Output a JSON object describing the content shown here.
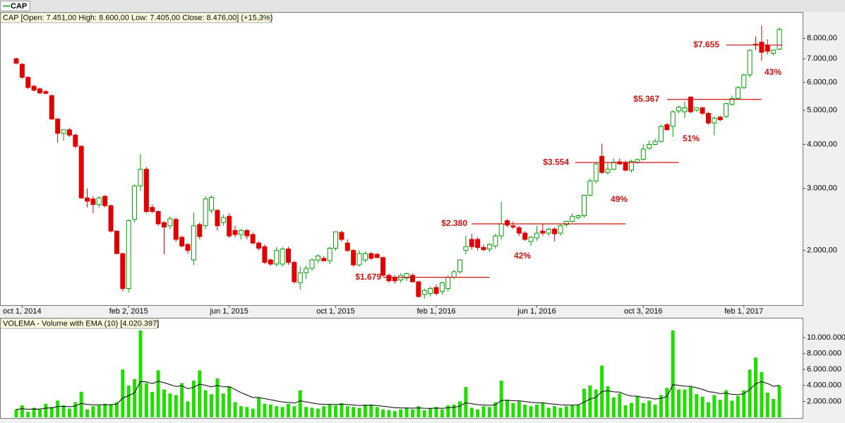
{
  "chart_data": [
    {
      "type": "candlestick",
      "legend": "CAP",
      "info": "CAP [Open: 7.451,00  High: 8.600,00  Low: 7.405,00  Close: 8.476,00] (+15,3%)",
      "categories": [
        null,
        "oct 1, 2014",
        null,
        null,
        null,
        null,
        null,
        null,
        null,
        null,
        null,
        null,
        null,
        null,
        null,
        null,
        null,
        null,
        null,
        "feb 2, 2015",
        null,
        null,
        null,
        null,
        null,
        null,
        null,
        null,
        null,
        null,
        null,
        null,
        null,
        null,
        null,
        null,
        "jun 1, 2015",
        null,
        null,
        null,
        null,
        null,
        null,
        null,
        null,
        null,
        null,
        null,
        null,
        null,
        null,
        null,
        null,
        null,
        "oct 1, 2015",
        null,
        null,
        null,
        null,
        null,
        null,
        null,
        null,
        null,
        null,
        null,
        null,
        null,
        null,
        null,
        null,
        "feb 1, 2016",
        null,
        null,
        null,
        null,
        null,
        null,
        null,
        null,
        null,
        null,
        null,
        null,
        null,
        null,
        null,
        null,
        "jun 1, 2016",
        null,
        null,
        null,
        null,
        null,
        null,
        null,
        null,
        null,
        null,
        null,
        null,
        null,
        null,
        null,
        null,
        null,
        "oct 3, 2016",
        null,
        null,
        null,
        null,
        null,
        null,
        null,
        null,
        null,
        null,
        null,
        null,
        null,
        null,
        null,
        null,
        "feb 1, 2017",
        null,
        null,
        null,
        null,
        null,
        null
      ],
      "open": [
        7000,
        6750,
        6200,
        5850,
        5750,
        5650,
        5500,
        4720,
        4300,
        4400,
        4250,
        3950,
        2820,
        2800,
        2700,
        2850,
        2680,
        2270,
        1960,
        1560,
        2450,
        3050,
        3400,
        2650,
        2580,
        2400,
        2350,
        2450,
        2180,
        2080,
        1880,
        2370,
        2350,
        2600,
        2600,
        2400,
        2500,
        2280,
        2220,
        2280,
        2220,
        2100,
        2050,
        1880,
        1830,
        1830,
        2020,
        1850,
        1620,
        1730,
        1780,
        1880,
        1900,
        1870,
        2030,
        2250,
        2100,
        2000,
        1820,
        1880,
        1960,
        1950,
        1910,
        1700,
        1680,
        1650,
        1670,
        1700,
        1630,
        1500,
        1510,
        1570,
        1530,
        1560,
        1680,
        1740,
        2000,
        2150,
        2150,
        2040,
        2020,
        2060,
        2200,
        2430,
        2350,
        2320,
        2240,
        2120,
        2170,
        2270,
        2240,
        2300,
        2240,
        2370,
        2420,
        2480,
        2510,
        2870,
        3150,
        3700,
        3330,
        3400,
        3570,
        3560,
        3380,
        3560,
        3630,
        3900,
        4000,
        4080,
        4550,
        4500,
        4980,
        4950,
        5450,
        5000,
        5080,
        4900,
        4600,
        4780,
        4800,
        5200,
        5400,
        5800,
        6300,
        7700,
        7800,
        7650,
        7250,
        7451
      ],
      "high": [
        7050,
        6800,
        6250,
        5900,
        5800,
        5700,
        5550,
        4750,
        4400,
        4450,
        4300,
        3980,
        3000,
        2850,
        2850,
        2870,
        2700,
        2280,
        1970,
        2450,
        3080,
        3750,
        3450,
        2700,
        2600,
        2420,
        2500,
        2480,
        2200,
        2100,
        2560,
        2400,
        2850,
        2870,
        2620,
        2530,
        2550,
        2350,
        2300,
        2300,
        2250,
        2120,
        2080,
        1900,
        2050,
        2050,
        2050,
        1870,
        1800,
        1810,
        1900,
        1950,
        1930,
        2050,
        2260,
        2280,
        2150,
        2020,
        2000,
        1990,
        1980,
        1970,
        1920,
        1720,
        1700,
        1720,
        1730,
        1720,
        1640,
        1560,
        1580,
        1600,
        1630,
        1700,
        1760,
        1890,
        2200,
        2230,
        2180,
        2080,
        2100,
        2230,
        2750,
        2460,
        2420,
        2350,
        2270,
        2200,
        2350,
        2380,
        2320,
        2330,
        2370,
        2430,
        2550,
        2530,
        2880,
        3200,
        3550,
        4020,
        3550,
        3650,
        3650,
        3600,
        3620,
        3650,
        4000,
        4100,
        4150,
        4550,
        4600,
        5000,
        5150,
        5300,
        5480,
        5100,
        5130,
        4950,
        4800,
        4830,
        5250,
        5500,
        5850,
        6350,
        7450,
        8100,
        8700,
        7950,
        7450,
        8600
      ],
      "low": [
        6750,
        6150,
        5750,
        5650,
        5550,
        5550,
        4700,
        4050,
        4100,
        4200,
        3900,
        2800,
        2650,
        2550,
        2650,
        2650,
        2250,
        1950,
        1530,
        1520,
        2400,
        2950,
        2550,
        2550,
        2350,
        1950,
        2300,
        2120,
        2040,
        1960,
        1820,
        2150,
        2300,
        2550,
        2280,
        2350,
        2170,
        2180,
        2150,
        2150,
        2080,
        2000,
        1830,
        1810,
        1800,
        1800,
        1820,
        1610,
        1550,
        1660,
        1750,
        1840,
        1860,
        1830,
        2000,
        2120,
        1980,
        1800,
        1800,
        1850,
        1880,
        1900,
        1690,
        1620,
        1610,
        1620,
        1640,
        1620,
        1470,
        1460,
        1480,
        1490,
        1500,
        1530,
        1660,
        1720,
        1950,
        2010,
        2000,
        1990,
        1980,
        2020,
        2150,
        2330,
        2300,
        2200,
        2130,
        2060,
        2130,
        2200,
        2200,
        2120,
        2200,
        2330,
        2400,
        2450,
        2480,
        2850,
        3100,
        3300,
        3280,
        3380,
        3500,
        3350,
        3330,
        3520,
        3600,
        3860,
        3980,
        4050,
        4380,
        4200,
        4900,
        4750,
        4900,
        4950,
        4850,
        4550,
        4250,
        4650,
        4750,
        5150,
        5350,
        5750,
        6200,
        7400,
        6900,
        7200,
        7150,
        7405
      ],
      "close": [
        6800,
        6200,
        5800,
        5700,
        5600,
        5580,
        4720,
        4300,
        4400,
        4250,
        3950,
        2820,
        2760,
        2700,
        2820,
        2680,
        2270,
        1960,
        1560,
        2430,
        3050,
        3400,
        2580,
        2580,
        2380,
        2330,
        2460,
        2150,
        2060,
        2000,
        2350,
        2190,
        2800,
        2830,
        2350,
        2480,
        2200,
        2220,
        2280,
        2200,
        2100,
        2030,
        1850,
        1830,
        2000,
        2020,
        1850,
        1630,
        1730,
        1780,
        1880,
        1930,
        1870,
        2030,
        2260,
        2150,
        2000,
        1820,
        1960,
        1960,
        1900,
        1910,
        1700,
        1640,
        1640,
        1700,
        1720,
        1630,
        1480,
        1540,
        1560,
        1510,
        1620,
        1680,
        1740,
        1880,
        2050,
        2050,
        2040,
        2010,
        2080,
        2200,
        2380,
        2360,
        2330,
        2240,
        2150,
        2180,
        2240,
        2240,
        2300,
        2230,
        2350,
        2420,
        2500,
        2510,
        2870,
        3150,
        3520,
        3330,
        3400,
        3560,
        3520,
        3380,
        3580,
        3620,
        3880,
        4000,
        4080,
        4500,
        4400,
        4950,
        5100,
        5080,
        4950,
        5080,
        4900,
        4600,
        4750,
        4700,
        5220,
        5400,
        5800,
        6300,
        7400,
        7650,
        7300,
        7350,
        7400,
        8476
      ],
      "up_color": "#00a000",
      "down_color": "#e00000",
      "log_scale": true,
      "ylim": [
        1400,
        9500
      ],
      "yticks": [
        {
          "value": 2000,
          "label": "2.000,00"
        },
        {
          "value": 3000,
          "label": "3.000,00"
        },
        {
          "value": 4000,
          "label": "4.000,00"
        },
        {
          "value": 5000,
          "label": "5.000,00"
        },
        {
          "value": 6000,
          "label": "6.000,00"
        },
        {
          "value": 7000,
          "label": "7.000,00"
        },
        {
          "value": 8000,
          "label": "8.000,00"
        }
      ],
      "annotations": {
        "color": "#cc1111",
        "levels": [
          {
            "label": "$1.679",
            "value": 1679
          },
          {
            "label": "$2.380",
            "value": 2380
          },
          {
            "label": "$3.554",
            "value": 3554
          },
          {
            "label": "$5.367",
            "value": 5367
          },
          {
            "label": "$7.655",
            "value": 7655
          }
        ],
        "percents": [
          "42%",
          "49%",
          "51%",
          "43%"
        ]
      }
    },
    {
      "type": "bar",
      "title": "VOLEMA - Volume with EMA (10) [4.020.397]",
      "ylim": [
        0,
        12400000
      ],
      "yticks": [
        {
          "value": 2000000,
          "label": "2.000.000"
        },
        {
          "value": 4000000,
          "label": "4.000.000"
        },
        {
          "value": 6000000,
          "label": "6.000.000"
        },
        {
          "value": 8000000,
          "label": "8.000.000"
        },
        {
          "value": 10000000,
          "label": "10.000.000"
        }
      ],
      "series": [
        {
          "type": "bar",
          "color": "#22dd00",
          "values": [
            1000000,
            1500000,
            700000,
            1200000,
            1000000,
            1700000,
            1300000,
            2100000,
            1500000,
            1100000,
            1900000,
            3200000,
            1000000,
            1400000,
            1500000,
            1700000,
            1600000,
            1900000,
            6000000,
            4000000,
            4800000,
            10900000,
            4300000,
            3200000,
            5900000,
            3500000,
            3000000,
            2800000,
            4300000,
            2000000,
            4600000,
            5900000,
            3400000,
            2900000,
            4900000,
            3000000,
            3900000,
            1900000,
            1400000,
            1300000,
            1100000,
            2500000,
            1700000,
            1600000,
            1400000,
            1300000,
            1700000,
            1400000,
            3400000,
            1300000,
            1200000,
            1100000,
            1400000,
            1600000,
            1500000,
            1800000,
            1400000,
            1300000,
            1200000,
            1600000,
            1600000,
            1300000,
            1000000,
            900000,
            800000,
            1000000,
            1200000,
            1000000,
            1400000,
            900000,
            1100000,
            1300000,
            1000000,
            1500000,
            1600000,
            2000000,
            3800000,
            1200000,
            1000000,
            1400000,
            1300000,
            1900000,
            4600000,
            2200000,
            1800000,
            2000000,
            1600000,
            1400000,
            1600000,
            1800000,
            1200000,
            1400000,
            1200000,
            1400000,
            1500000,
            1600000,
            3600000,
            4000000,
            3500000,
            6500000,
            3900000,
            2500000,
            3000000,
            1500000,
            1800000,
            2600000,
            1800000,
            2100000,
            1600000,
            2800000,
            3700000,
            10900000,
            3500000,
            3500000,
            3800000,
            2900000,
            2600000,
            1900000,
            2800000,
            2200000,
            3400000,
            2100000,
            2700000,
            3400000,
            6000000,
            7500000,
            5700000,
            3100000,
            2300000,
            4000000
          ]
        },
        {
          "type": "line",
          "color": "#000000",
          "values": [
            1000000,
            1090000,
            1020000,
            1050000,
            1040000,
            1160000,
            1190000,
            1350000,
            1380000,
            1330000,
            1430000,
            1750000,
            1620000,
            1580000,
            1570000,
            1590000,
            1590000,
            1650000,
            2430000,
            2710000,
            3090000,
            4500000,
            4460000,
            4230000,
            4530000,
            4350000,
            4110000,
            3870000,
            3950000,
            3600000,
            3780000,
            4160000,
            4020000,
            3820000,
            4010000,
            3830000,
            3840000,
            3490000,
            3110000,
            2790000,
            2490000,
            2490000,
            2350000,
            2210000,
            2060000,
            1920000,
            1880000,
            1790000,
            2080000,
            1940000,
            1810000,
            1680000,
            1630000,
            1630000,
            1610000,
            1640000,
            1600000,
            1550000,
            1490000,
            1510000,
            1530000,
            1490000,
            1400000,
            1310000,
            1220000,
            1180000,
            1180000,
            1150000,
            1190000,
            1140000,
            1130000,
            1160000,
            1130000,
            1200000,
            1270000,
            1400000,
            1830000,
            1720000,
            1590000,
            1560000,
            1510000,
            1580000,
            2120000,
            2140000,
            2080000,
            2070000,
            1990000,
            1880000,
            1830000,
            1830000,
            1720000,
            1660000,
            1580000,
            1550000,
            1540000,
            1550000,
            1920000,
            2290000,
            2510000,
            3230000,
            3350000,
            3200000,
            3160000,
            2860000,
            2670000,
            2660000,
            2510000,
            2440000,
            2290000,
            2380000,
            2620000,
            4110000,
            4000000,
            3910000,
            3890000,
            3710000,
            3510000,
            3220000,
            3140000,
            2970000,
            3050000,
            2880000,
            2850000,
            2950000,
            3500000,
            4220000,
            4490000,
            4240000,
            3890000,
            4020397
          ]
        }
      ]
    }
  ]
}
